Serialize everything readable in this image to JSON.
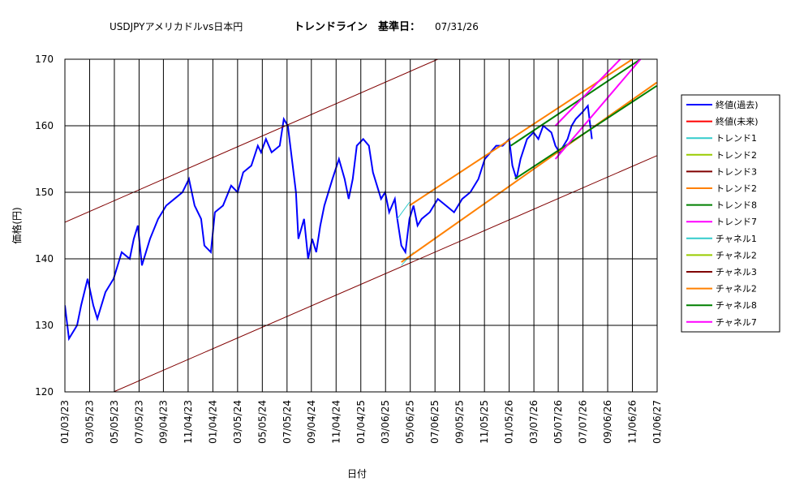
{
  "chart_data": {
    "type": "line",
    "title": "USDJPYアメリカドルvs日本円",
    "subtitle": "トレンドライン　基準日：",
    "date": "07/31/26",
    "x_label": "日付",
    "y_label": "価格(円)",
    "xlim": [
      0,
      1461
    ],
    "ylim": [
      120,
      170
    ],
    "grid": true,
    "legend": "right",
    "xticks": [
      {
        "value": 0,
        "label": "01/03/23"
      },
      {
        "value": 61,
        "label": "03/05/23"
      },
      {
        "value": 122,
        "label": "05/05/23"
      },
      {
        "value": 183,
        "label": "07/05/23"
      },
      {
        "value": 243,
        "label": "09/04/23"
      },
      {
        "value": 304,
        "label": "11/04/23"
      },
      {
        "value": 365,
        "label": "01/04/24"
      },
      {
        "value": 426,
        "label": "03/05/24"
      },
      {
        "value": 487,
        "label": "05/05/24"
      },
      {
        "value": 548,
        "label": "07/05/24"
      },
      {
        "value": 608,
        "label": "09/04/24"
      },
      {
        "value": 669,
        "label": "11/04/24"
      },
      {
        "value": 730,
        "label": "01/04/25"
      },
      {
        "value": 791,
        "label": "03/06/25"
      },
      {
        "value": 852,
        "label": "05/06/25"
      },
      {
        "value": 913,
        "label": "07/06/25"
      },
      {
        "value": 974,
        "label": "09/05/25"
      },
      {
        "value": 1035,
        "label": "11/05/25"
      },
      {
        "value": 1096,
        "label": "01/05/26"
      },
      {
        "value": 1157,
        "label": "03/07/26"
      },
      {
        "value": 1217,
        "label": "05/07/26"
      },
      {
        "value": 1278,
        "label": "07/07/26"
      },
      {
        "value": 1339,
        "label": "09/06/26"
      },
      {
        "value": 1400,
        "label": "11/06/26"
      },
      {
        "value": 1461,
        "label": "01/06/27"
      }
    ],
    "yticks": [
      120,
      130,
      140,
      150,
      160,
      170
    ],
    "series": [
      {
        "name": "終値(過去)",
        "color": "#0000ff",
        "width": 2,
        "x": [
          0,
          10,
          30,
          40,
          56,
          70,
          80,
          100,
          120,
          140,
          160,
          170,
          180,
          190,
          210,
          230,
          250,
          270,
          290,
          306,
          320,
          336,
          344,
          360,
          370,
          390,
          410,
          426,
          440,
          460,
          476,
          484,
          496,
          510,
          530,
          540,
          550,
          560,
          570,
          576,
          590,
          600,
          610,
          620,
          630,
          640,
          660,
          676,
          690,
          700,
          710,
          720,
          736,
          750,
          760,
          770,
          780,
          790,
          800,
          814,
          820,
          830,
          840,
          850,
          860,
          870,
          880,
          900,
          920,
          940,
          960,
          980,
          1000,
          1020,
          1036,
          1050,
          1064,
          1080,
          1096,
          1104,
          1114,
          1124,
          1140,
          1156,
          1168,
          1180,
          1200,
          1210,
          1220,
          1230,
          1240,
          1250,
          1260,
          1276,
          1290,
          1300
        ],
        "values": [
          133,
          128,
          130,
          133,
          137,
          133,
          131,
          135,
          137,
          141,
          140,
          143,
          145,
          139,
          143,
          146,
          148,
          149,
          150,
          152,
          148,
          146,
          142,
          141,
          147,
          148,
          151,
          150,
          153,
          154,
          157,
          156,
          158,
          156,
          157,
          161,
          160,
          155,
          150,
          143,
          146,
          140,
          143,
          141,
          145,
          148,
          152,
          155,
          152,
          149,
          152,
          157,
          158,
          157,
          153,
          151,
          149,
          150,
          147,
          149,
          146,
          142,
          141,
          146,
          148,
          145,
          146,
          147,
          149,
          148,
          147,
          149,
          150,
          152,
          155,
          156,
          157,
          157,
          158,
          154,
          152,
          155,
          158,
          159,
          158,
          160,
          159,
          157,
          156,
          157,
          158,
          160,
          161,
          162,
          163,
          158
        ]
      },
      {
        "name": "終値(未来)",
        "color": "#ff0000",
        "width": 1,
        "x": [],
        "values": []
      },
      {
        "name": "トレンド1",
        "color": "#33cccc",
        "width": 1,
        "x": [
          820,
          850
        ],
        "values": [
          146,
          148.5
        ]
      },
      {
        "name": "トレンド2",
        "color": "#99cc00",
        "width": 1,
        "x": [],
        "values": []
      },
      {
        "name": "トレンド3",
        "color": "#800000",
        "width": 1,
        "x": [
          120,
          1460
        ],
        "values": [
          120,
          155.5
        ]
      },
      {
        "name": "トレンド2",
        "color": "#ff8000",
        "width": 2,
        "x": [
          850,
          1400
        ],
        "values": [
          148,
          170
        ]
      },
      {
        "name": "トレンド8",
        "color": "#008000",
        "width": 2,
        "x": [
          1100,
          1420
        ],
        "values": [
          157,
          170
        ]
      },
      {
        "name": "トレンド7",
        "color": "#ff00ff",
        "width": 2,
        "x": [
          1210,
          1370
        ],
        "values": [
          160,
          170
        ]
      },
      {
        "name": "チャネル1",
        "color": "#33cccc",
        "width": 1,
        "x": [
          830,
          860
        ],
        "values": [
          139,
          141
        ]
      },
      {
        "name": "チャネル2",
        "color": "#99cc00",
        "width": 1,
        "x": [],
        "values": []
      },
      {
        "name": "チャネル3",
        "color": "#800000",
        "width": 1,
        "x": [
          0,
          920
        ],
        "values": [
          145.5,
          170
        ]
      },
      {
        "name": "チャネル2",
        "color": "#ff8000",
        "width": 2,
        "x": [
          830,
          1460
        ],
        "values": [
          139.5,
          166.5
        ]
      },
      {
        "name": "チャネル8",
        "color": "#008000",
        "width": 2,
        "x": [
          1110,
          1460
        ],
        "values": [
          152,
          166
        ]
      },
      {
        "name": "チャネル7",
        "color": "#ff00ff",
        "width": 2,
        "x": [
          1210,
          1420
        ],
        "values": [
          155,
          170
        ]
      }
    ]
  }
}
